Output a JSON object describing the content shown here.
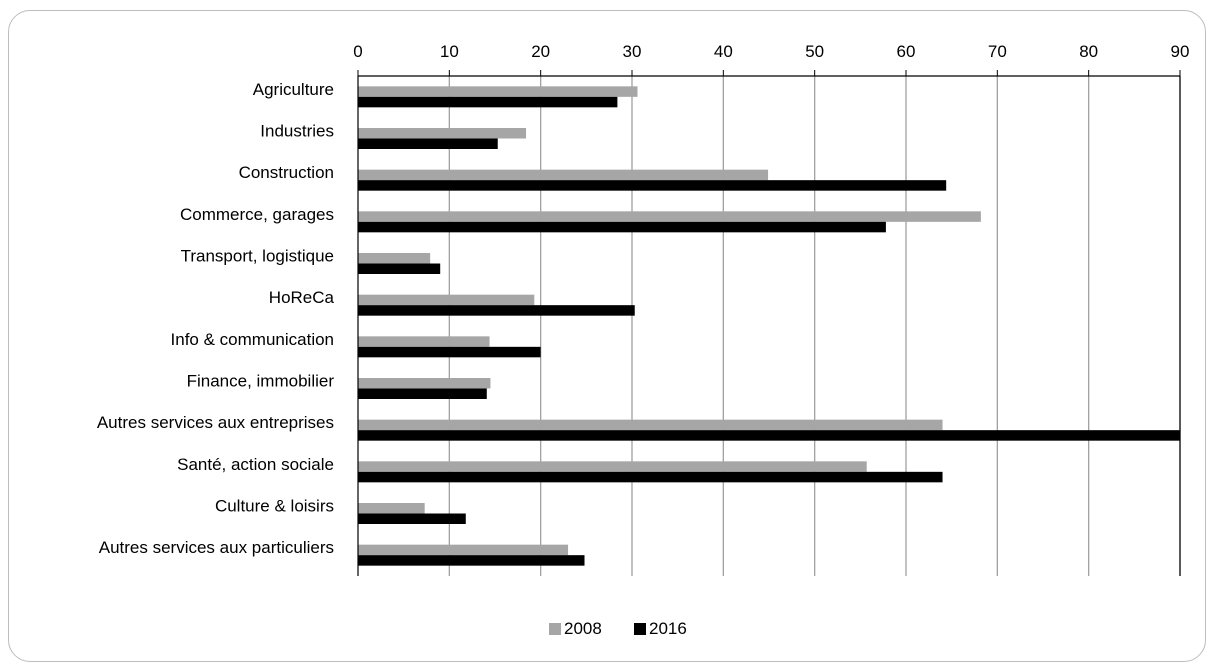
{
  "chart_data": {
    "type": "bar",
    "orientation": "horizontal",
    "categories": [
      "Agriculture",
      "Industries",
      "Construction",
      "Commerce, garages",
      "Transport, logistique",
      "HoReCa",
      "Info & communication",
      "Finance, immobilier",
      "Autres services aux entreprises",
      "Santé, action sociale",
      "Culture & loisirs",
      "Autres services aux particuliers"
    ],
    "series": [
      {
        "name": "2008",
        "color": "#a6a6a6",
        "values": [
          30.6,
          18.4,
          44.9,
          68.2,
          7.9,
          19.3,
          14.4,
          14.5,
          64.0,
          55.7,
          7.3,
          23.0
        ]
      },
      {
        "name": "2016",
        "color": "#000000",
        "values": [
          28.4,
          15.3,
          64.4,
          57.8,
          9.0,
          30.3,
          20.0,
          14.1,
          90.0,
          64.0,
          11.8,
          24.8
        ]
      }
    ],
    "xlim": [
      0,
      90
    ],
    "xticks": [
      0,
      10,
      20,
      30,
      40,
      50,
      60,
      70,
      80,
      90
    ],
    "x_axis_position": "top",
    "grid": true,
    "legend_position": "bottom"
  }
}
